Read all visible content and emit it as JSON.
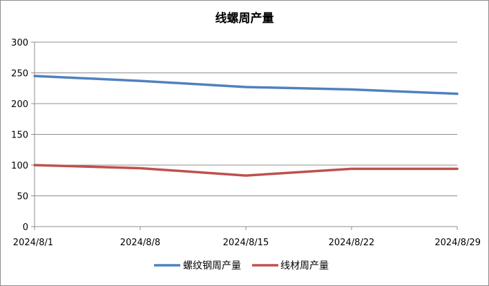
{
  "chart_data": {
    "type": "line",
    "title": "线螺周产量",
    "categories": [
      "2024/8/1",
      "2024/8/8",
      "2024/8/15",
      "2024/8/22",
      "2024/8/29"
    ],
    "ylim": [
      0,
      300
    ],
    "yticks": [
      0,
      50,
      100,
      150,
      200,
      250,
      300
    ],
    "grid": true,
    "legend_position": "bottom",
    "series": [
      {
        "name": "螺纹钢周产量",
        "color": "#4f81bd",
        "values": [
          245,
          237,
          227,
          223,
          216
        ]
      },
      {
        "name": "线材周产量",
        "color": "#c0504d",
        "values": [
          100,
          95,
          83,
          94,
          94
        ]
      }
    ]
  }
}
